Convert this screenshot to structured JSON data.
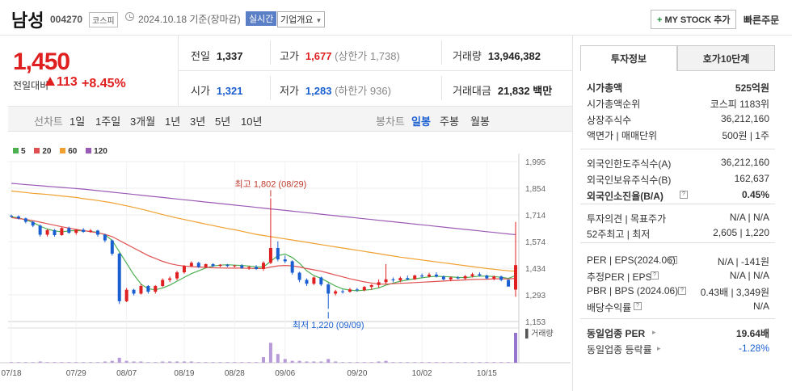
{
  "header": {
    "name": "남성",
    "code": "004270",
    "market": "코스피",
    "date": "2024.10.18 기준(장마감)",
    "realtime": "실시간",
    "overview": "기업개요",
    "mystock": "MY STOCK 추가",
    "quick_order": "빠른주문"
  },
  "summary": {
    "price": "1,450",
    "change_label": "전일대비",
    "change": "113",
    "change_pct": "+8.45%"
  },
  "quote": {
    "prev_label": "전일",
    "prev": "1,337",
    "high_label": "고가",
    "high": "1,677",
    "upper_limit": "(상한가 1,738)",
    "volume_label": "거래량",
    "volume": "13,946,382",
    "open_label": "시가",
    "open": "1,321",
    "low_label": "저가",
    "low": "1,283",
    "lower_limit": "(하한가 936)",
    "amount_label": "거래대금",
    "amount": "21,832",
    "amount_unit": "백만"
  },
  "periods": {
    "line_label": "선차트",
    "items": [
      "1일",
      "1주일",
      "3개월",
      "1년",
      "3년",
      "5년",
      "10년"
    ],
    "candle_label": "봉차트",
    "candle_items": [
      "일봉",
      "주봉",
      "월봉"
    ]
  },
  "legend": [
    {
      "name": "5",
      "color": "#4caf50"
    },
    {
      "name": "20",
      "color": "#e05050"
    },
    {
      "name": "60",
      "color": "#f0a030"
    },
    {
      "name": "120",
      "color": "#9b59b6"
    }
  ],
  "colors": {
    "up": "#e02020",
    "down": "#1a5fd1"
  },
  "chart_data": {
    "type": "candlestick",
    "y_ticks": [
      "1,995",
      "1,854",
      "1,714",
      "1,574",
      "1,434",
      "1,293",
      "1,153"
    ],
    "ylim": [
      1153,
      1995
    ],
    "x_ticks": [
      "07/18",
      "07/29",
      "08/07",
      "08/19",
      "08/28",
      "09/06",
      "09/20",
      "10/02",
      "10/15"
    ],
    "annotation_high": "최고 1,802 (08/29)",
    "annotation_low": "최저 1,220 (09/09)",
    "volume_label": "거래량",
    "candles": [
      [
        1710,
        1716,
        1700,
        1706
      ],
      [
        1706,
        1712,
        1690,
        1696
      ],
      [
        1696,
        1700,
        1670,
        1678
      ],
      [
        1678,
        1682,
        1650,
        1658
      ],
      [
        1658,
        1664,
        1600,
        1610
      ],
      [
        1610,
        1640,
        1600,
        1634
      ],
      [
        1634,
        1640,
        1600,
        1608
      ],
      [
        1608,
        1650,
        1605,
        1645
      ],
      [
        1645,
        1652,
        1615,
        1620
      ],
      [
        1620,
        1640,
        1610,
        1636
      ],
      [
        1636,
        1645,
        1620,
        1625
      ],
      [
        1625,
        1640,
        1620,
        1632
      ],
      [
        1632,
        1636,
        1600,
        1610
      ],
      [
        1610,
        1615,
        1570,
        1580
      ],
      [
        1580,
        1585,
        1500,
        1510
      ],
      [
        1510,
        1515,
        1245,
        1260
      ],
      [
        1260,
        1330,
        1255,
        1320
      ],
      [
        1320,
        1325,
        1290,
        1300
      ],
      [
        1300,
        1350,
        1295,
        1340
      ],
      [
        1340,
        1345,
        1300,
        1310
      ],
      [
        1310,
        1345,
        1300,
        1340
      ],
      [
        1340,
        1380,
        1335,
        1372
      ],
      [
        1372,
        1390,
        1360,
        1380
      ],
      [
        1380,
        1420,
        1370,
        1412
      ],
      [
        1412,
        1450,
        1405,
        1445
      ],
      [
        1445,
        1470,
        1440,
        1462
      ],
      [
        1462,
        1468,
        1435,
        1440
      ],
      [
        1440,
        1458,
        1435,
        1455
      ],
      [
        1455,
        1460,
        1440,
        1445
      ],
      [
        1445,
        1455,
        1440,
        1452
      ],
      [
        1452,
        1456,
        1440,
        1445
      ],
      [
        1445,
        1450,
        1438,
        1448
      ],
      [
        1448,
        1455,
        1430,
        1435
      ],
      [
        1435,
        1445,
        1425,
        1440
      ],
      [
        1440,
        1450,
        1425,
        1430
      ],
      [
        1430,
        1470,
        1420,
        1462
      ],
      [
        1462,
        1802,
        1455,
        1540
      ],
      [
        1540,
        1575,
        1470,
        1480
      ],
      [
        1480,
        1500,
        1460,
        1470
      ],
      [
        1470,
        1475,
        1400,
        1410
      ],
      [
        1410,
        1415,
        1360,
        1372
      ],
      [
        1372,
        1380,
        1340,
        1352
      ],
      [
        1352,
        1390,
        1345,
        1385
      ],
      [
        1385,
        1390,
        1340,
        1348
      ],
      [
        1348,
        1355,
        1220,
        1300
      ],
      [
        1300,
        1320,
        1290,
        1312
      ],
      [
        1312,
        1322,
        1300,
        1310
      ],
      [
        1310,
        1330,
        1305,
        1322
      ],
      [
        1322,
        1330,
        1310,
        1318
      ],
      [
        1318,
        1340,
        1312,
        1335
      ],
      [
        1335,
        1350,
        1320,
        1345
      ],
      [
        1345,
        1375,
        1330,
        1360
      ],
      [
        1360,
        1455,
        1350,
        1375
      ],
      [
        1375,
        1385,
        1360,
        1370
      ],
      [
        1370,
        1390,
        1360,
        1382
      ],
      [
        1382,
        1395,
        1370,
        1375
      ],
      [
        1375,
        1400,
        1372,
        1395
      ],
      [
        1395,
        1405,
        1385,
        1390
      ],
      [
        1390,
        1410,
        1385,
        1400
      ],
      [
        1400,
        1412,
        1385,
        1390
      ],
      [
        1390,
        1395,
        1370,
        1375
      ],
      [
        1375,
        1390,
        1365,
        1385
      ],
      [
        1385,
        1392,
        1375,
        1380
      ],
      [
        1380,
        1398,
        1372,
        1392
      ],
      [
        1392,
        1410,
        1385,
        1402
      ],
      [
        1402,
        1412,
        1390,
        1395
      ],
      [
        1395,
        1400,
        1375,
        1380
      ],
      [
        1380,
        1395,
        1370,
        1390
      ],
      [
        1390,
        1395,
        1365,
        1372
      ],
      [
        1372,
        1375,
        1340,
        1337
      ],
      [
        1321,
        1677,
        1283,
        1450
      ]
    ],
    "ma": {
      "5": [
        1705,
        1698,
        1688,
        1675,
        1655,
        1640,
        1630,
        1625,
        1630,
        1632,
        1630,
        1628,
        1622,
        1610,
        1580,
        1520,
        1460,
        1400,
        1350,
        1325,
        1320,
        1330,
        1345,
        1365,
        1385,
        1405,
        1420,
        1435,
        1445,
        1450,
        1452,
        1450,
        1448,
        1445,
        1440,
        1440,
        1470,
        1500,
        1508,
        1490,
        1460,
        1420,
        1395,
        1380,
        1360,
        1340,
        1325,
        1318,
        1315,
        1318,
        1322,
        1330,
        1345,
        1355,
        1365,
        1372,
        1378,
        1383,
        1388,
        1391,
        1390,
        1388,
        1385,
        1384,
        1388,
        1392,
        1392,
        1390,
        1386,
        1380,
        1395
      ],
      "20": [
        1700,
        1695,
        1690,
        1684,
        1676,
        1668,
        1660,
        1652,
        1645,
        1638,
        1632,
        1626,
        1620,
        1612,
        1600,
        1580,
        1560,
        1540,
        1520,
        1500,
        1485,
        1470,
        1458,
        1450,
        1445,
        1442,
        1440,
        1438,
        1436,
        1435,
        1434,
        1434,
        1434,
        1433,
        1432,
        1432,
        1440,
        1446,
        1448,
        1446,
        1440,
        1432,
        1425,
        1418,
        1408,
        1398,
        1388,
        1378,
        1370,
        1362,
        1356,
        1350,
        1350,
        1352,
        1354,
        1356,
        1358,
        1360,
        1362,
        1364,
        1366,
        1368,
        1370,
        1372,
        1374,
        1375,
        1376,
        1378,
        1378,
        1377,
        1380
      ],
      "60": [
        1840,
        1836,
        1832,
        1828,
        1825,
        1822,
        1818,
        1814,
        1810,
        1806,
        1800,
        1795,
        1790,
        1784,
        1778,
        1770,
        1762,
        1754,
        1745,
        1736,
        1726,
        1716,
        1707,
        1698,
        1690,
        1682,
        1674,
        1666,
        1658,
        1650,
        1643,
        1636,
        1628,
        1620,
        1612,
        1606,
        1600,
        1594,
        1588,
        1582,
        1576,
        1570,
        1564,
        1558,
        1552,
        1546,
        1540,
        1534,
        1528,
        1522,
        1516,
        1510,
        1504,
        1498,
        1492,
        1487,
        1482,
        1477,
        1472,
        1467,
        1462,
        1457,
        1452,
        1447,
        1442,
        1437,
        1432,
        1428,
        1424,
        1420,
        1418
      ],
      "120": [
        1880,
        1877,
        1874,
        1871,
        1868,
        1865,
        1862,
        1859,
        1856,
        1853,
        1850,
        1846,
        1842,
        1838,
        1834,
        1830,
        1826,
        1822,
        1818,
        1814,
        1810,
        1806,
        1802,
        1798,
        1794,
        1790,
        1786,
        1782,
        1778,
        1774,
        1770,
        1766,
        1762,
        1758,
        1754,
        1750,
        1746,
        1742,
        1738,
        1734,
        1730,
        1726,
        1722,
        1718,
        1714,
        1710,
        1706,
        1702,
        1698,
        1694,
        1690,
        1686,
        1682,
        1678,
        1674,
        1670,
        1666,
        1662,
        1658,
        1654,
        1650,
        1646,
        1642,
        1638,
        1634,
        1630,
        1626,
        1622,
        1618,
        1614,
        1610
      ]
    },
    "volume": [
      1,
      1,
      1,
      1,
      2,
      1,
      1,
      1,
      1,
      1,
      1,
      1,
      1,
      2,
      3,
      8,
      3,
      2,
      2,
      1,
      1,
      2,
      2,
      2,
      2,
      2,
      1,
      1,
      1,
      1,
      1,
      1,
      1,
      1,
      1,
      9,
      32,
      14,
      6,
      3,
      3,
      2,
      2,
      2,
      6,
      2,
      1,
      1,
      1,
      1,
      1,
      2,
      3,
      1,
      1,
      1,
      1,
      1,
      1,
      1,
      1,
      1,
      1,
      1,
      1,
      1,
      1,
      1,
      1,
      1,
      48
    ]
  },
  "panel": {
    "tab1": "투자정보",
    "tab2": "호가10단계",
    "rows": [
      {
        "l": "시가총액",
        "r": "525억원",
        "bold": true
      },
      {
        "l": "시가총액순위",
        "r": "코스피 1183위"
      },
      {
        "l": "상장주식수",
        "r": "36,212,160"
      },
      {
        "l": "액면가 | 매매단위",
        "r": "500원 | 1주"
      },
      {
        "l": "외국인한도주식수(A)",
        "r": "36,212,160"
      },
      {
        "l": "외국인보유주식수(B)",
        "r": "162,637"
      },
      {
        "l": "외국인소진율(B/A)",
        "r": "0.45%",
        "bold": true
      },
      {
        "l": "투자의견 | 목표주가",
        "r": "N/A | N/A"
      },
      {
        "l": "52주최고 | 최저",
        "r": "2,605 | 1,220"
      },
      {
        "l": "PER | EPS(2024.06)",
        "r": "N/A | -141원"
      },
      {
        "l": "추정PER | EPS",
        "r": "N/A | N/A"
      },
      {
        "l": "PBR | BPS (2024.06)",
        "r": "0.43배 | 3,349원"
      },
      {
        "l": "배당수익률",
        "r": "N/A"
      },
      {
        "l": "동일업종 PER",
        "r": "19.64배",
        "bold": true
      },
      {
        "l": "동일업종 등락률",
        "r": "-1.28%",
        "blue": true
      }
    ]
  }
}
